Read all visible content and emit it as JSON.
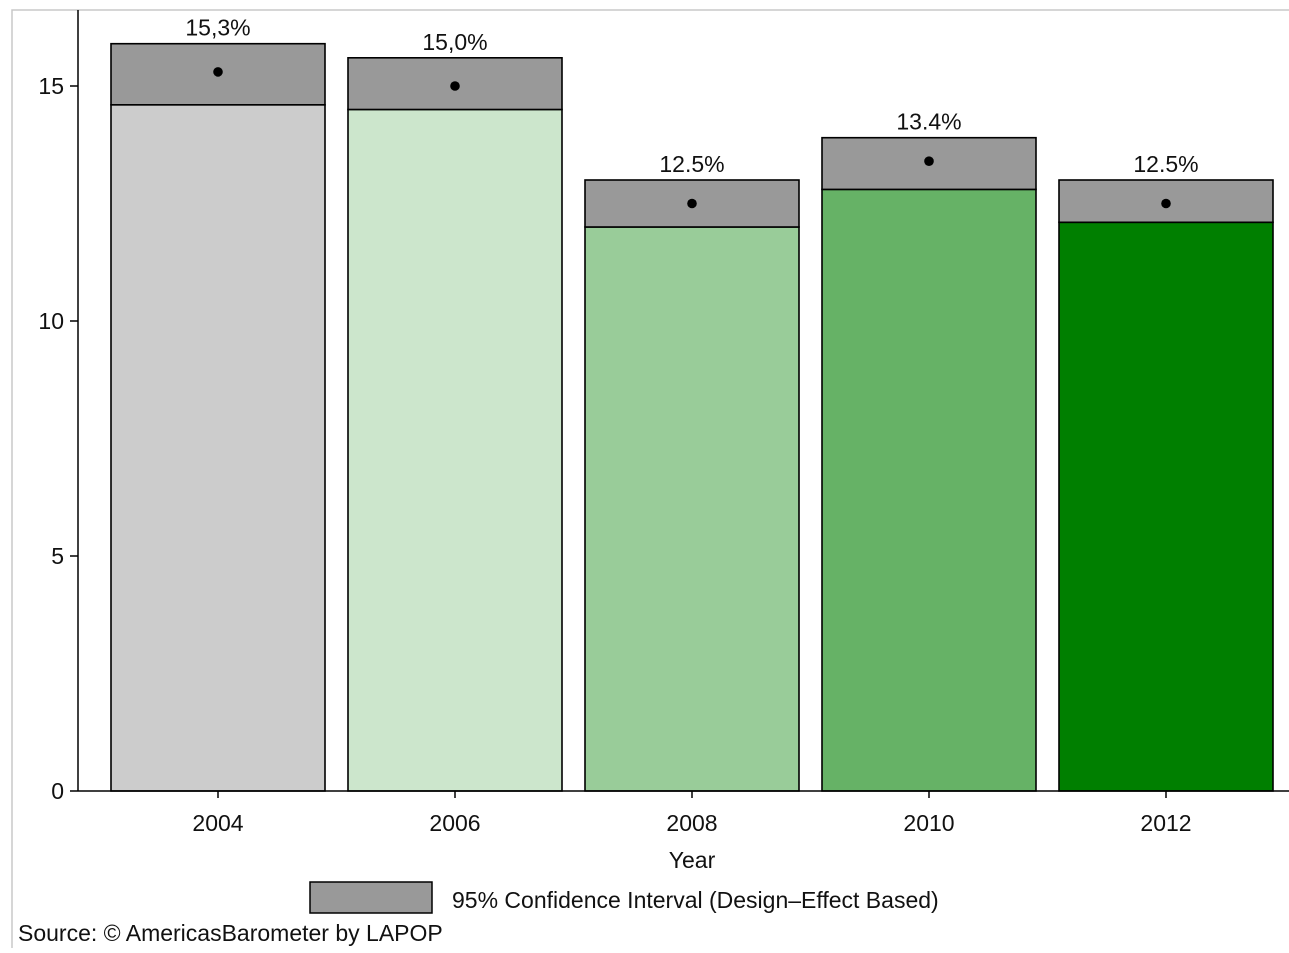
{
  "chart_data": {
    "type": "bar",
    "categories": [
      "2004",
      "2006",
      "2008",
      "2010",
      "2012"
    ],
    "values": [
      15.3,
      15.0,
      12.5,
      13.4,
      12.5
    ],
    "data_labels": [
      "15,3%",
      "15,0%",
      "12.5%",
      "13.4%",
      "12.5%"
    ],
    "ci_lower": [
      14.6,
      14.5,
      12.0,
      12.8,
      12.1
    ],
    "ci_upper": [
      15.9,
      15.6,
      13.0,
      13.9,
      13.0
    ],
    "bar_colors": [
      "#cccccc",
      "#cce6cc",
      "#99cc99",
      "#66b266",
      "#007f00"
    ],
    "ci_color": "#999999",
    "xlabel": "Year",
    "ylabel": "",
    "ylim": [
      0,
      16.6
    ],
    "yticks": [
      0,
      5,
      10,
      15
    ],
    "legend": {
      "label": "95% Confidence Interval (Design–Effect Based)",
      "placement": "bottom-center"
    },
    "grid": false
  },
  "source": "Source: © AmericasBarometer by LAPOP"
}
